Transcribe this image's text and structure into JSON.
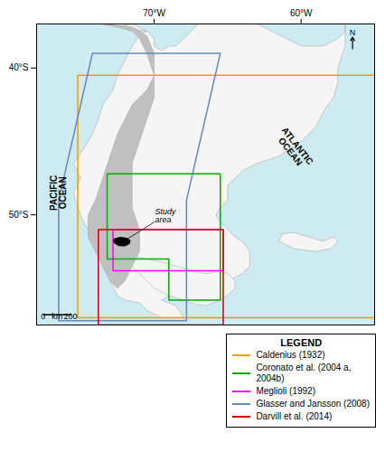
{
  "chart_data": {
    "type": "map",
    "xlim": [
      -78,
      -55
    ],
    "ylim": [
      -57.5,
      -37.0
    ],
    "xticks": [
      {
        "value": -70,
        "label": "70°W"
      },
      {
        "value": -60,
        "label": "60°W"
      }
    ],
    "yticks": [
      {
        "value": -40,
        "label": "40°S"
      },
      {
        "value": -50,
        "label": "50°S"
      }
    ],
    "grid": false,
    "legend": "lower right",
    "legend_title": "LEGEND",
    "land": [
      {
        "color": "#f5f5f5",
        "x": [
          -73.5,
          -72.5,
          -71.5,
          -70.5,
          -70.0,
          -70.0,
          -69.5,
          -69.0,
          -68.5,
          -68.0,
          -67.5,
          -67.0,
          -66.0,
          -65.0,
          -63.0,
          -62.0,
          -61.0,
          -60.0,
          -58.5,
          -57.5,
          -57.0,
          -57.0,
          -57.0,
          -57.0,
          -57.5,
          -57.5,
          -57.8,
          -58.5,
          -59.0,
          -60.0,
          -61.5,
          -63.0,
          -64.0,
          -64.5,
          -65.0,
          -65.0,
          -65.5,
          -65.8,
          -65.5,
          -65.0,
          -64.5,
          -64.0,
          -63.5,
          -63.5,
          -64.0,
          -65.0,
          -66.0,
          -66.5,
          -67.0,
          -67.5,
          -68.0,
          -68.5,
          -69.0,
          -69.5,
          -69.0,
          -68.5,
          -68.0,
          -69.5,
          -70.5,
          -71.0,
          -72.0,
          -72.5,
          -73.0,
          -73.5,
          -73.8,
          -74.2,
          -74.8,
          -75.2,
          -75.5,
          -75.0,
          -75.5,
          -74.8,
          -74.2,
          -73.8,
          -73.5,
          -72.8,
          -72.5,
          -72.0,
          -71.5,
          -71.0,
          -70.5,
          -73.5
        ],
        "y": [
          -37.0,
          -37.2,
          -37.0,
          -37.5,
          -38.0,
          -38.5,
          -38.8,
          -38.5,
          -38.5,
          -38.0,
          -37.5,
          -37.0,
          -37.0,
          -37.0,
          -37.0,
          -37.5,
          -38.0,
          -38.5,
          -38.5,
          -38.0,
          -37.5,
          -37.0,
          -37.0,
          -38.5,
          -40.0,
          -41.0,
          -42.0,
          -43.0,
          -44.0,
          -45.0,
          -46.0,
          -46.5,
          -47.0,
          -47.5,
          -48.0,
          -49.0,
          -49.5,
          -50.0,
          -50.5,
          -51.0,
          -51.5,
          -51.8,
          -52.5,
          -53.5,
          -54.0,
          -54.5,
          -55.0,
          -55.2,
          -55.5,
          -55.8,
          -55.5,
          -55.0,
          -55.5,
          -55.8,
          -56.0,
          -56.2,
          -57.0,
          -57.0,
          -56.5,
          -56.0,
          -55.8,
          -55.5,
          -54.5,
          -53.5,
          -52.5,
          -51.5,
          -50.5,
          -49.5,
          -48.5,
          -47.5,
          -46.5,
          -45.5,
          -44.5,
          -43.5,
          -42.5,
          -41.5,
          -40.5,
          -39.5,
          -38.5,
          -37.8,
          -37.5,
          -37.0
        ]
      },
      {
        "color": "#f5f5f5",
        "x": [
          -74.0,
          -73.5,
          -73.0,
          -72.5,
          -72.0,
          -71.5,
          -70.5,
          -69.5,
          -68.5,
          -67.5,
          -66.5,
          -65.5,
          -65.0,
          -64.5,
          -64.5,
          -65.0,
          -65.5,
          -66.5,
          -67.5,
          -68.0,
          -69.0,
          -70.0,
          -70.5,
          -71.0,
          -71.5,
          -72.0,
          -73.0,
          -74.0
        ],
        "y": [
          -52.5,
          -52.0,
          -52.5,
          -52.0,
          -52.5,
          -52.8,
          -53.0,
          -53.2,
          -53.5,
          -53.8,
          -54.0,
          -53.8,
          -54.0,
          -54.5,
          -55.0,
          -55.5,
          -55.8,
          -56.2,
          -56.0,
          -55.8,
          -55.5,
          -55.0,
          -54.5,
          -54.0,
          -53.5,
          -53.0,
          -53.0,
          -52.5
        ]
      },
      {
        "color": "#f5f5f5",
        "x": [
          -61.3,
          -60.5,
          -59.5,
          -58.5,
          -57.8,
          -57.5,
          -58.0,
          -59.0,
          -60.5,
          -61.5,
          -61.3
        ],
        "y": [
          -51.3,
          -51.2,
          -51.5,
          -51.8,
          -51.5,
          -51.8,
          -52.3,
          -52.5,
          -52.3,
          -51.8,
          -51.3
        ]
      },
      {
        "color": "#c0c0c0",
        "x": [
          -73.5,
          -71.5,
          -70.5,
          -70.0,
          -70.0,
          -70.5,
          -71.5,
          -72.0,
          -72.5,
          -73.0,
          -73.5,
          -74.0,
          -74.5,
          -74.5,
          -74.0,
          -73.5,
          -73.0,
          -72.5,
          -72.0,
          -71.5,
          -71.0,
          -71.0,
          -71.5,
          -71.5,
          -71.5,
          -71.0,
          -70.5,
          -70.0,
          -70.0,
          -70.5,
          -71.0,
          -71.5,
          -72.5,
          -73.5
        ],
        "y": [
          -37.0,
          -37.2,
          -37.8,
          -39.0,
          -40.5,
          -41.5,
          -42.5,
          -43.5,
          -44.5,
          -46.0,
          -47.5,
          -49.0,
          -50.0,
          -51.5,
          -52.5,
          -53.5,
          -54.5,
          -55.0,
          -54.5,
          -53.5,
          -52.5,
          -51.0,
          -49.5,
          -48.0,
          -46.5,
          -45.0,
          -43.5,
          -42.0,
          -40.5,
          -39.0,
          -38.0,
          -37.5,
          -37.2,
          -37.0
        ]
      }
    ],
    "series": [
      {
        "name": "Caldenius (1932)",
        "color": "#e8a000",
        "x": [
          -75.2,
          -54.5,
          -54.5,
          -75.2,
          -75.2
        ],
        "y": [
          -40.5,
          -40.5,
          -57.0,
          -57.0,
          -40.5
        ]
      },
      {
        "name": "Coronato et al. (2004 a,\n2004b)",
        "color": "#00aa00",
        "x": [
          -73.2,
          -65.5,
          -65.5,
          -69.0,
          -69.0,
          -73.2,
          -73.2
        ],
        "y": [
          -47.2,
          -47.2,
          -55.8,
          -55.8,
          -53.0,
          -53.0,
          -47.2
        ]
      },
      {
        "name": "Meglioli (1992)",
        "color": "#ff00ff",
        "x": [
          -72.8,
          -65.3,
          -65.3,
          -72.8,
          -72.8
        ],
        "y": [
          -51.0,
          -51.0,
          -53.8,
          -53.8,
          -51.0
        ]
      },
      {
        "name": "Glasser and Jansson  (2008)",
        "color": "#6688bb",
        "x": [
          -76.5,
          -74.2,
          -65.5,
          -67.8,
          -67.8,
          -76.5,
          -76.5
        ],
        "y": [
          -49.0,
          -39.0,
          -39.0,
          -49.0,
          -57.2,
          -57.2,
          -49.0
        ]
      },
      {
        "name": "Darvill et al. (2014)",
        "color": "#cc0000",
        "x": [
          -73.8,
          -65.3,
          -65.3,
          -73.8,
          -73.8
        ],
        "y": [
          -51.0,
          -51.0,
          -57.5,
          -57.5,
          -51.0
        ]
      }
    ],
    "study_area": {
      "color": "black",
      "x": [
        -72.7,
        -72.3,
        -71.9,
        -71.65,
        -71.7,
        -72.0,
        -72.4,
        -72.7,
        -72.75
      ],
      "y": [
        -51.65,
        -51.55,
        -51.6,
        -51.75,
        -51.95,
        -52.1,
        -52.08,
        -51.9,
        -51.75
      ]
    },
    "north_arrow": {
      "x": [
        -56.5,
        -56.5
      ],
      "y": [
        -38.7,
        -37.9
      ]
    },
    "scale_bar": {
      "x": [
        -77.5,
        -75.7
      ],
      "y": -56.8,
      "tick_y": [
        -56.88,
        -56.72
      ]
    },
    "annotations": [
      {
        "text": "PACIFIC\nOCEAN",
        "x": -76.5,
        "y": -48.5
      },
      {
        "text": "ATLANTIC\nOCEAN",
        "x": -60.5,
        "y": -45.5
      },
      {
        "text": "Study\narea",
        "x": -70.0,
        "y": -50.5,
        "arrow_to_x": -72.0,
        "arrow_to_y": -51.75
      },
      {
        "text": "N",
        "x": -56.5,
        "y": -37.8
      },
      {
        "text": "0",
        "x": -77.55,
        "y": -57.1
      },
      {
        "text": "km",
        "x": -76.6,
        "y": -57.1
      },
      {
        "text": "200",
        "x": -75.7,
        "y": -57.1
      }
    ]
  }
}
